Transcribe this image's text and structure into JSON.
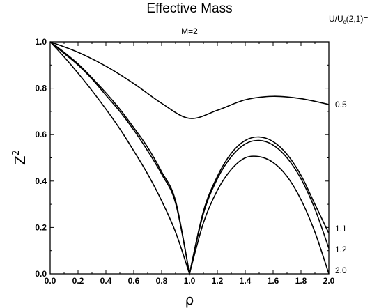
{
  "chart_data": {
    "type": "line",
    "title": "Effective Mass",
    "subtitle": "M=2",
    "xlabel": "ρ",
    "ylabel": "Z",
    "ylabel_superscript": "2",
    "xlim": [
      0.0,
      2.0
    ],
    "ylim": [
      0.0,
      1.0
    ],
    "xticks": [
      "0.0",
      "0.2",
      "0.4",
      "0.6",
      "0.8",
      "1.0",
      "1.2",
      "1.4",
      "1.6",
      "1.8",
      "2.0"
    ],
    "yticks": [
      "0.0",
      "0.2",
      "0.4",
      "0.6",
      "0.8",
      "1.0"
    ],
    "legend_header": {
      "main": "U/U",
      "sub": "c",
      "rest": "(2,1)="
    },
    "series": [
      {
        "name": "0.5",
        "x": [
          0.0,
          0.2,
          0.4,
          0.6,
          0.8,
          1.0,
          1.2,
          1.4,
          1.6,
          1.8,
          2.0
        ],
        "y": [
          1.0,
          0.955,
          0.895,
          0.82,
          0.735,
          0.67,
          0.705,
          0.75,
          0.765,
          0.755,
          0.73
        ]
      },
      {
        "name": "1.1",
        "x": [
          0.0,
          0.1,
          0.2,
          0.3,
          0.4,
          0.5,
          0.6,
          0.7,
          0.8,
          0.9,
          1.0,
          1.1,
          1.2,
          1.3,
          1.4,
          1.5,
          1.6,
          1.7,
          1.8,
          1.9,
          2.0
        ],
        "y": [
          1.0,
          0.955,
          0.905,
          0.845,
          0.78,
          0.71,
          0.63,
          0.545,
          0.44,
          0.315,
          0.0,
          0.27,
          0.42,
          0.52,
          0.575,
          0.59,
          0.57,
          0.515,
          0.425,
          0.3,
          0.175
        ]
      },
      {
        "name": "1.2",
        "x": [
          0.0,
          0.1,
          0.2,
          0.3,
          0.4,
          0.5,
          0.6,
          0.7,
          0.8,
          0.9,
          1.0,
          1.1,
          1.2,
          1.3,
          1.4,
          1.5,
          1.6,
          1.7,
          1.8,
          1.9,
          2.0
        ],
        "y": [
          1.0,
          0.95,
          0.9,
          0.84,
          0.77,
          0.7,
          0.62,
          0.53,
          0.43,
          0.305,
          0.0,
          0.26,
          0.41,
          0.505,
          0.56,
          0.575,
          0.555,
          0.5,
          0.41,
          0.28,
          0.11
        ]
      },
      {
        "name": "2.0",
        "x": [
          0.0,
          0.1,
          0.2,
          0.3,
          0.4,
          0.5,
          0.6,
          0.7,
          0.8,
          0.9,
          1.0,
          1.1,
          1.2,
          1.3,
          1.4,
          1.5,
          1.6,
          1.7,
          1.8,
          1.9,
          2.0
        ],
        "y": [
          1.0,
          0.935,
          0.865,
          0.79,
          0.71,
          0.625,
          0.53,
          0.43,
          0.315,
          0.18,
          0.0,
          0.22,
          0.36,
          0.45,
          0.5,
          0.505,
          0.48,
          0.42,
          0.32,
          0.18,
          0.0
        ]
      }
    ]
  }
}
